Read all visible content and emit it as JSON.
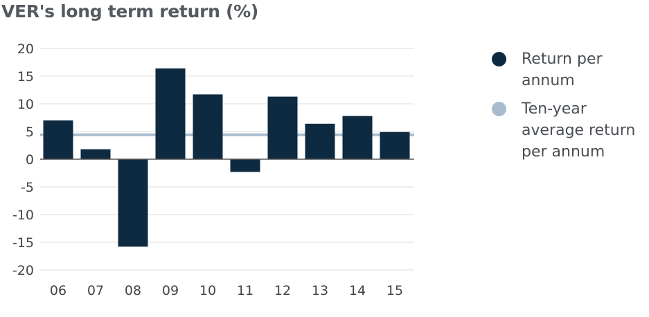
{
  "title": "VER's long term return (%)",
  "colors": {
    "bar": "#0e2a40",
    "average_line": "#a9bccd",
    "grid": "#e3e3e3",
    "zero_axis": "#555555"
  },
  "legend": {
    "items": [
      {
        "label": "Return per annum",
        "color": "#0e2a40"
      },
      {
        "label": "Ten-year average return per annum",
        "color": "#a9bccd"
      }
    ]
  },
  "chart_data": {
    "type": "bar",
    "title": "VER's long term return (%)",
    "categories": [
      "06",
      "07",
      "08",
      "09",
      "10",
      "11",
      "12",
      "13",
      "14",
      "15"
    ],
    "series": [
      {
        "name": "Return per annum",
        "values": [
          7.0,
          1.8,
          -15.8,
          16.4,
          11.7,
          -2.3,
          11.3,
          6.4,
          7.8,
          4.9
        ]
      }
    ],
    "reference_lines": [
      {
        "name": "Ten-year average return per annum",
        "value": 4.4
      }
    ],
    "ylim": [
      -20,
      20
    ],
    "yticks": [
      "20",
      "15",
      "10",
      "5",
      "0",
      "-5",
      "-10",
      "-15",
      "-20"
    ],
    "grid": true,
    "legend_position": "right",
    "xlabel": "",
    "ylabel": ""
  }
}
